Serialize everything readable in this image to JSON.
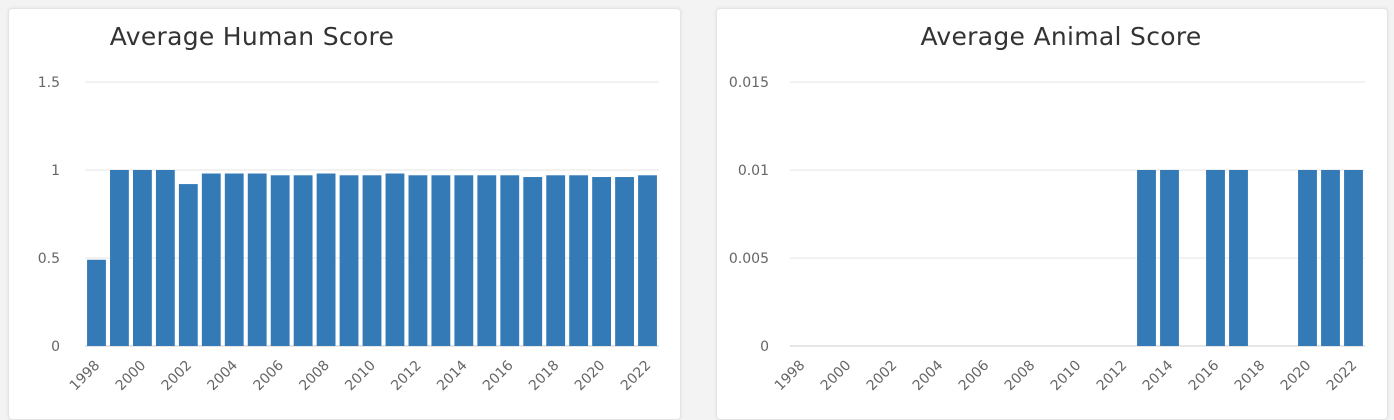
{
  "colors": {
    "bar": "#337ab7"
  },
  "chart_data": [
    {
      "type": "bar",
      "title": "Average Human Score",
      "xlabel": "",
      "ylabel": "",
      "ylim": [
        0,
        1.5
      ],
      "yticks": [
        0,
        0.5,
        1,
        1.5
      ],
      "ytick_labels": [
        "0",
        "0.5",
        "1",
        "1.5"
      ],
      "categories": [
        "1998",
        "1999",
        "2000",
        "2001",
        "2002",
        "2003",
        "2004",
        "2005",
        "2006",
        "2007",
        "2008",
        "2009",
        "2010",
        "2011",
        "2012",
        "2013",
        "2014",
        "2015",
        "2016",
        "2017",
        "2018",
        "2019",
        "2020",
        "2021",
        "2022"
      ],
      "xtick_labels": [
        "1998",
        "2000",
        "2002",
        "2004",
        "2006",
        "2008",
        "2010",
        "2012",
        "2014",
        "2016",
        "2018",
        "2020",
        "2022"
      ],
      "values": [
        0.49,
        1.0,
        1.0,
        1.0,
        0.92,
        0.98,
        0.98,
        0.98,
        0.97,
        0.97,
        0.98,
        0.97,
        0.97,
        0.98,
        0.97,
        0.97,
        0.97,
        0.97,
        0.97,
        0.96,
        0.97,
        0.97,
        0.96,
        0.96,
        0.97
      ],
      "grid": true,
      "legend": "none"
    },
    {
      "type": "bar",
      "title": "Average Animal Score",
      "xlabel": "",
      "ylabel": "",
      "ylim": [
        0,
        0.015
      ],
      "yticks": [
        0,
        0.005,
        0.01,
        0.015
      ],
      "ytick_labels": [
        "0",
        "0.005",
        "0.01",
        "0.015"
      ],
      "categories": [
        "1998",
        "1999",
        "2000",
        "2001",
        "2002",
        "2003",
        "2004",
        "2005",
        "2006",
        "2007",
        "2008",
        "2009",
        "2010",
        "2011",
        "2012",
        "2013",
        "2014",
        "2015",
        "2016",
        "2017",
        "2018",
        "2019",
        "2020",
        "2021",
        "2022"
      ],
      "xtick_labels": [
        "1998",
        "2000",
        "2002",
        "2004",
        "2006",
        "2008",
        "2010",
        "2012",
        "2014",
        "2016",
        "2018",
        "2020",
        "2022"
      ],
      "values": [
        0,
        0,
        0,
        0,
        0,
        0,
        0,
        0,
        0,
        0,
        0,
        0,
        0,
        0,
        0,
        0.01,
        0.01,
        0,
        0.01,
        0.01,
        0,
        0,
        0.01,
        0.01,
        0.01
      ],
      "grid": true,
      "legend": "none"
    }
  ]
}
